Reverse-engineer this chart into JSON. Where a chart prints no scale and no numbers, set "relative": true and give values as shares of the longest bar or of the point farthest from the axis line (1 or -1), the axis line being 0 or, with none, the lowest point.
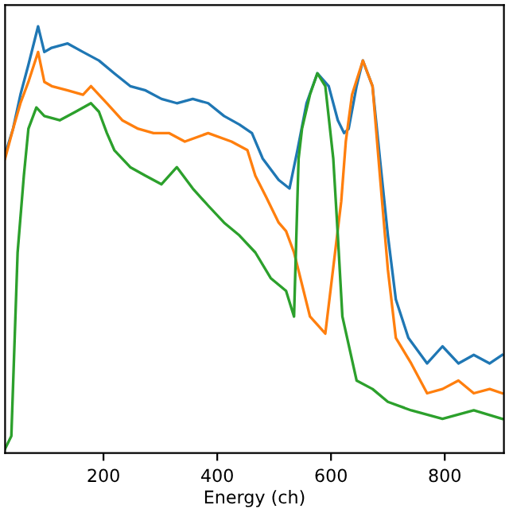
{
  "chart_data": {
    "type": "line",
    "xlabel": "Energy (ch)",
    "relative": true,
    "xlim": [
      27,
      904
    ],
    "xticks": [
      200,
      400,
      600,
      800
    ],
    "tick_labels": "x",
    "grid": false,
    "series": [
      {
        "color": "#1f77b4",
        "x": [
          27,
          41,
          54,
          68,
          85,
          96,
          109,
          137,
          164,
          192,
          219,
          247,
          274,
          302,
          329,
          357,
          384,
          412,
          439,
          461,
          480,
          508,
          527,
          541,
          557,
          576,
          596,
          612,
          623,
          631,
          645,
          656,
          673,
          686,
          700,
          714,
          736,
          769,
          796,
          824,
          851,
          879,
          901
        ],
        "values": [
          0.7,
          0.76,
          0.84,
          0.91,
          1.0,
          0.94,
          0.95,
          0.96,
          0.94,
          0.92,
          0.89,
          0.86,
          0.85,
          0.83,
          0.82,
          0.83,
          0.82,
          0.79,
          0.77,
          0.75,
          0.69,
          0.64,
          0.62,
          0.71,
          0.82,
          0.89,
          0.86,
          0.78,
          0.75,
          0.76,
          0.86,
          0.92,
          0.86,
          0.69,
          0.51,
          0.36,
          0.27,
          0.21,
          0.25,
          0.21,
          0.23,
          0.21,
          0.23
        ]
      },
      {
        "color": "#ff7f0e",
        "x": [
          27,
          41,
          54,
          68,
          85,
          96,
          109,
          137,
          164,
          178,
          206,
          233,
          261,
          288,
          315,
          343,
          384,
          425,
          453,
          467,
          486,
          508,
          521,
          535,
          563,
          590,
          618,
          626,
          637,
          656,
          673,
          686,
          700,
          714,
          741,
          769,
          796,
          824,
          851,
          879,
          901
        ],
        "values": [
          0.69,
          0.76,
          0.82,
          0.87,
          0.94,
          0.87,
          0.86,
          0.85,
          0.84,
          0.86,
          0.82,
          0.78,
          0.76,
          0.75,
          0.75,
          0.73,
          0.75,
          0.73,
          0.71,
          0.65,
          0.6,
          0.54,
          0.52,
          0.47,
          0.32,
          0.28,
          0.59,
          0.73,
          0.84,
          0.92,
          0.86,
          0.65,
          0.43,
          0.27,
          0.21,
          0.14,
          0.15,
          0.17,
          0.14,
          0.15,
          0.14
        ]
      },
      {
        "color": "#2ca02c",
        "x": [
          27,
          38,
          49,
          60,
          68,
          82,
          96,
          123,
          151,
          178,
          192,
          206,
          219,
          247,
          274,
          302,
          329,
          357,
          384,
          412,
          439,
          467,
          494,
          521,
          535,
          543,
          549,
          563,
          576,
          590,
          604,
          612,
          620,
          645,
          673,
          700,
          741,
          796,
          851,
          901
        ],
        "values": [
          0.01,
          0.04,
          0.47,
          0.65,
          0.76,
          0.81,
          0.79,
          0.78,
          0.8,
          0.82,
          0.8,
          0.75,
          0.71,
          0.67,
          0.65,
          0.63,
          0.67,
          0.62,
          0.58,
          0.54,
          0.51,
          0.47,
          0.41,
          0.38,
          0.32,
          0.69,
          0.76,
          0.84,
          0.89,
          0.86,
          0.69,
          0.51,
          0.32,
          0.17,
          0.15,
          0.12,
          0.1,
          0.08,
          0.1,
          0.08
        ]
      }
    ]
  }
}
